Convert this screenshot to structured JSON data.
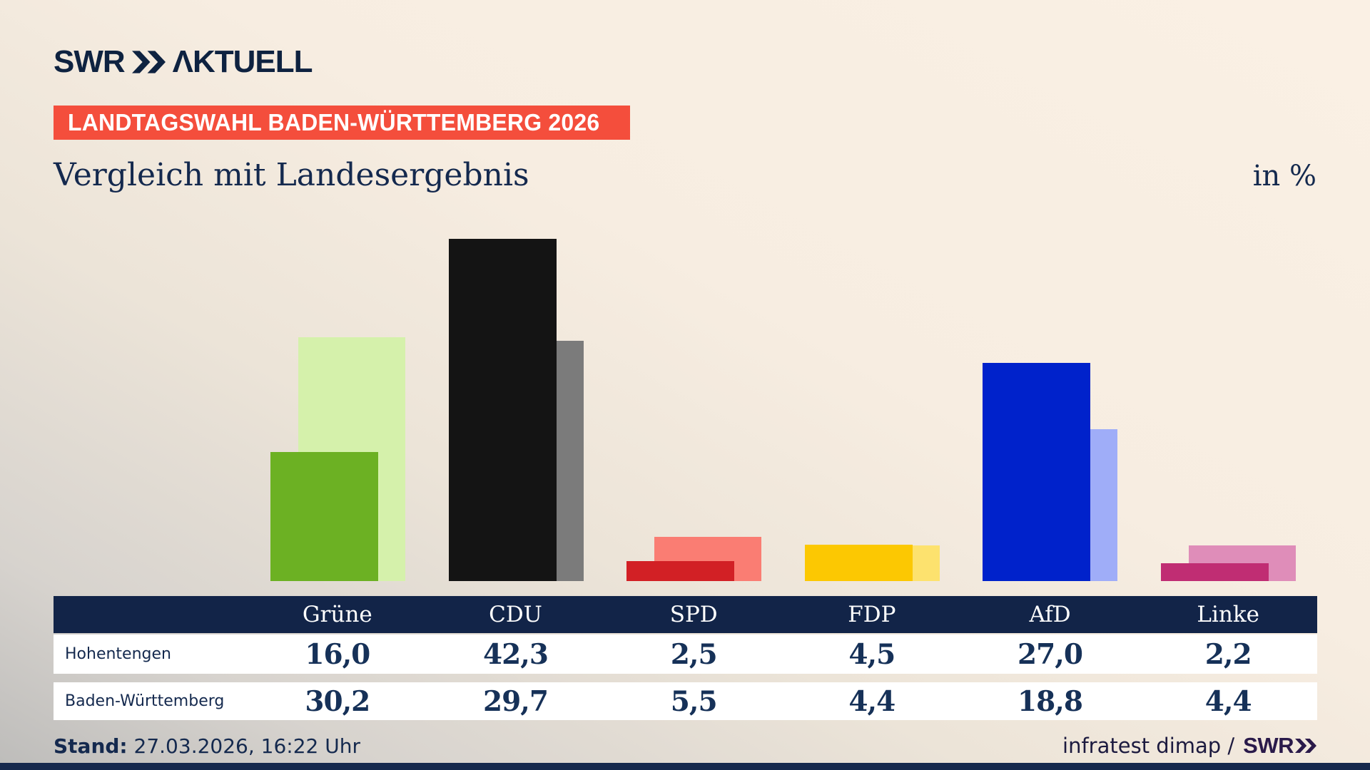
{
  "header": {
    "brand_swr": "SWR",
    "brand_aktuell": "ΛKTUELL",
    "badge": "LANDTAGSWAHL BADEN-WÜRTTEMBERG 2026",
    "title": "Vergleich mit Landesergebnis",
    "unit_label": "in %"
  },
  "chart_data": {
    "type": "bar",
    "title": "Vergleich mit Landesergebnis",
    "unit": "in %",
    "categories": [
      "Grüne",
      "CDU",
      "SPD",
      "FDP",
      "AfD",
      "Linke"
    ],
    "series": [
      {
        "name": "Hohentengen",
        "values": [
          16.0,
          42.3,
          2.5,
          4.5,
          27.0,
          2.2
        ],
        "colors": [
          "#6cb123",
          "#141414",
          "#d22025",
          "#fcc802",
          "#0022cb",
          "#c02d73"
        ]
      },
      {
        "name": "Baden-Württemberg",
        "values": [
          30.2,
          29.7,
          5.5,
          4.4,
          18.8,
          4.4
        ],
        "colors": [
          "#d5f1ab",
          "#7b7b7b",
          "#fa7d73",
          "#fde26e",
          "#9fadf8",
          "#df8db9"
        ]
      }
    ],
    "ylim": [
      0,
      45
    ],
    "grid": false,
    "legend_position": "table-below"
  },
  "table": {
    "columns": [
      "Grüne",
      "CDU",
      "SPD",
      "FDP",
      "AfD",
      "Linke"
    ],
    "rows": [
      {
        "label": "Hohentengen",
        "values": [
          "16,0",
          "42,3",
          "2,5",
          "4,5",
          "27,0",
          "2,2"
        ]
      },
      {
        "label": "Baden-Württemberg",
        "values": [
          "30,2",
          "29,7",
          "5,5",
          "4,4",
          "18,8",
          "4,4"
        ]
      }
    ]
  },
  "footer": {
    "stand_label": "Stand:",
    "stand_value": "27.03.2026, 16:22 Uhr",
    "source_text": "infratest dimap /",
    "source_brand": "SWR"
  },
  "colors": {
    "navy": "#14294e",
    "header_bg": "#122448",
    "badge_red": "#f44e3c",
    "background_beige": "#faf0e4",
    "background_gray": "#bdbcba",
    "brand_purple": "#2a1a4a"
  }
}
